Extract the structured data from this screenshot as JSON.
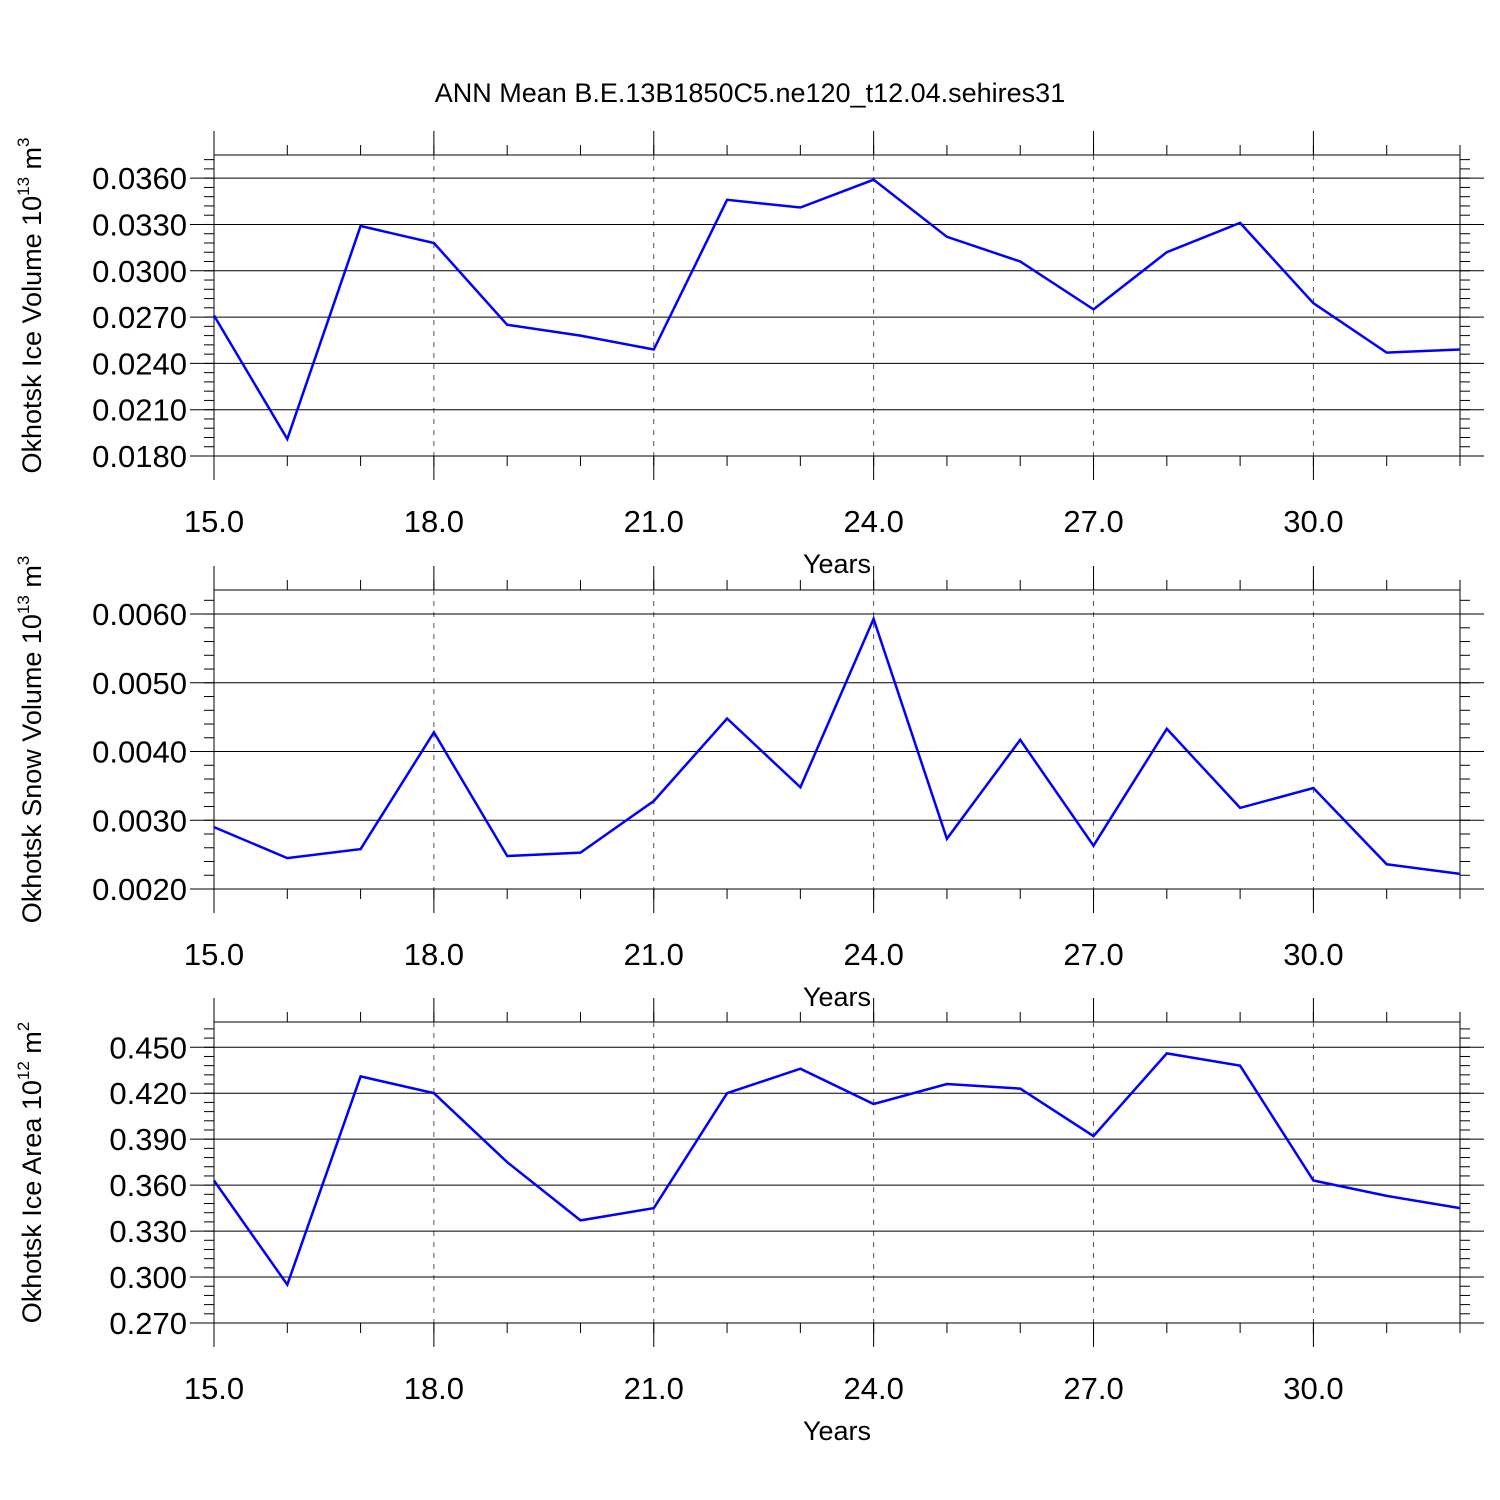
{
  "title": "ANN Mean B.E.13B1850C5.ne120_t12.04.sehires31",
  "line_color": "#0000ff",
  "chart_data": [
    {
      "type": "line",
      "title": "",
      "xlabel": "Years",
      "ylabel": {
        "text": "Okhotsk Ice Volume 10",
        "exp": "13",
        "unit": " m",
        "unit_exp": "3"
      },
      "xlim": [
        15,
        32
      ],
      "ylim": [
        0.018,
        0.0375
      ],
      "xticks": [
        15,
        18,
        21,
        24,
        27,
        30
      ],
      "xtick_labels": [
        "15.0",
        "18.0",
        "21.0",
        "24.0",
        "27.0",
        "30.0"
      ],
      "yticks": [
        0.018,
        0.021,
        0.024,
        0.027,
        0.03,
        0.033,
        0.036
      ],
      "ytick_labels": [
        "0.0180",
        "0.0210",
        "0.0240",
        "0.0270",
        "0.0300",
        "0.0330",
        "0.0360"
      ],
      "grid": "dashed vertical at major x ticks",
      "x": [
        15,
        16,
        17,
        18,
        19,
        20,
        21,
        22,
        23,
        24,
        25,
        26,
        27,
        28,
        29,
        30,
        31,
        32
      ],
      "values": [
        0.0271,
        0.0191,
        0.0329,
        0.0318,
        0.0265,
        0.0258,
        0.0249,
        0.0346,
        0.0341,
        0.0359,
        0.0322,
        0.0306,
        0.0275,
        0.0312,
        0.0331,
        0.0279,
        0.0247,
        0.0249
      ]
    },
    {
      "type": "line",
      "title": "",
      "xlabel": "Years",
      "ylabel": {
        "text": "Okhotsk Snow Volume 10",
        "exp": "13",
        "unit": " m",
        "unit_exp": "3"
      },
      "xlim": [
        15,
        32
      ],
      "ylim": [
        0.002,
        0.00635
      ],
      "xticks": [
        15,
        18,
        21,
        24,
        27,
        30
      ],
      "xtick_labels": [
        "15.0",
        "18.0",
        "21.0",
        "24.0",
        "27.0",
        "30.0"
      ],
      "yticks": [
        0.002,
        0.003,
        0.004,
        0.005,
        0.006
      ],
      "ytick_labels": [
        "0.0020",
        "0.0030",
        "0.0040",
        "0.0050",
        "0.0060"
      ],
      "grid": "dashed vertical at major x ticks",
      "x": [
        15,
        16,
        17,
        18,
        19,
        20,
        21,
        22,
        23,
        24,
        25,
        26,
        27,
        28,
        29,
        30,
        31,
        32
      ],
      "values": [
        0.0029,
        0.00245,
        0.00258,
        0.00428,
        0.00248,
        0.00253,
        0.00328,
        0.00448,
        0.00348,
        0.00593,
        0.00273,
        0.00417,
        0.00263,
        0.00433,
        0.00318,
        0.00347,
        0.00236,
        0.00222
      ]
    },
    {
      "type": "line",
      "title": "",
      "xlabel": "Years",
      "ylabel": {
        "text": "Okhotsk Ice Area 10",
        "exp": "12",
        "unit": " m",
        "unit_exp": "2"
      },
      "xlim": [
        15,
        32
      ],
      "ylim": [
        0.27,
        0.4665
      ],
      "xticks": [
        15,
        18,
        21,
        24,
        27,
        30
      ],
      "xtick_labels": [
        "15.0",
        "18.0",
        "21.0",
        "24.0",
        "27.0",
        "30.0"
      ],
      "yticks": [
        0.27,
        0.3,
        0.33,
        0.36,
        0.39,
        0.42,
        0.45
      ],
      "ytick_labels": [
        "0.270",
        "0.300",
        "0.330",
        "0.360",
        "0.390",
        "0.420",
        "0.450"
      ],
      "grid": "dashed vertical at major x ticks",
      "x": [
        15,
        16,
        17,
        18,
        19,
        20,
        21,
        22,
        23,
        24,
        25,
        26,
        27,
        28,
        29,
        30,
        31,
        32
      ],
      "values": [
        0.363,
        0.295,
        0.431,
        0.42,
        0.375,
        0.337,
        0.345,
        0.42,
        0.436,
        0.413,
        0.426,
        0.423,
        0.392,
        0.446,
        0.438,
        0.363,
        0.353,
        0.345
      ]
    }
  ]
}
